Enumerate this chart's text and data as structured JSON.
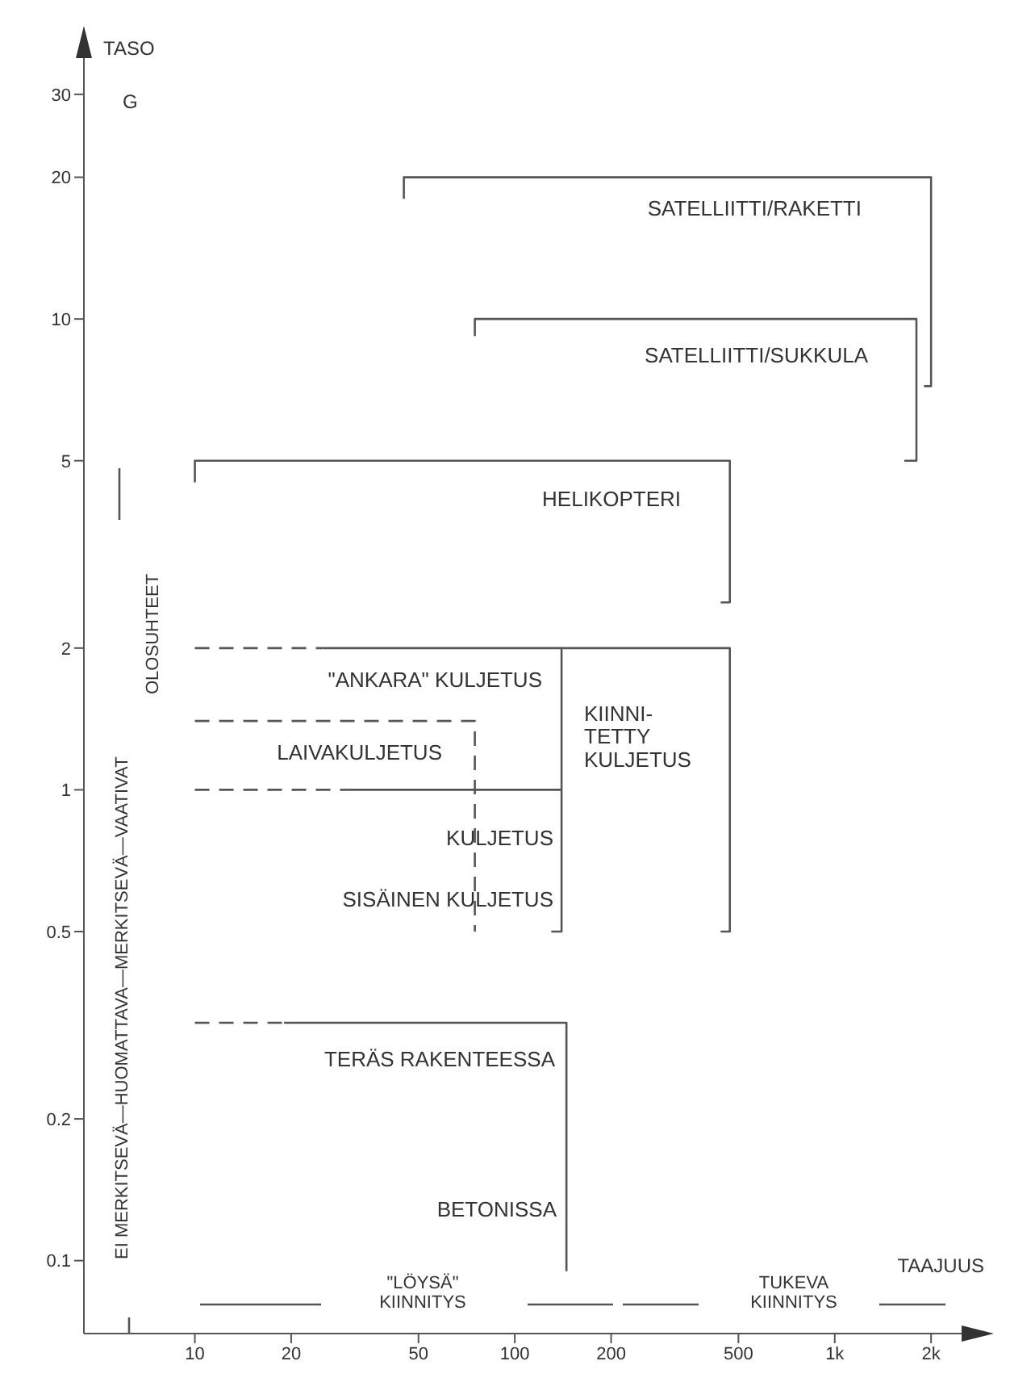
{
  "chart_data": {
    "type": "line",
    "ylabel": "TASO",
    "xlabel": "TAAJUUS",
    "log": "xy",
    "grid": false,
    "marker": "none",
    "xlim": [
      4.5,
      3000
    ],
    "xticks": [
      10,
      20,
      50,
      100,
      200,
      500,
      {
        "value": 1000,
        "label": "1k"
      },
      {
        "value": 2000,
        "label": "2k"
      }
    ],
    "ylim": [
      0.07,
      40
    ],
    "yticks": [
      0.1,
      0.2,
      0.5,
      1,
      2,
      5,
      10,
      20,
      30
    ],
    "series": [
      {
        "color": "#555555",
        "line_style": "solid",
        "x": [
          45,
          45,
          2000,
          2000,
          1900
        ],
        "values": [
          18,
          20,
          20,
          7.2,
          7.2
        ]
      },
      {
        "color": "#555555",
        "line_style": "solid",
        "x": [
          75,
          75,
          1800,
          1800,
          1650
        ],
        "values": [
          9.2,
          10,
          10,
          5,
          5
        ]
      },
      {
        "color": "#555555",
        "line_style": "solid",
        "x": [
          10,
          10,
          470,
          470,
          440
        ],
        "values": [
          4.5,
          5,
          5,
          2.5,
          2.5
        ]
      },
      {
        "color": "#555555",
        "line_style": "dashed",
        "x": [
          10,
          25
        ],
        "values": [
          2,
          2
        ]
      },
      {
        "color": "#555555",
        "line_style": "solid",
        "x": [
          25,
          140,
          140,
          130
        ],
        "values": [
          2,
          2,
          0.5,
          0.5
        ]
      },
      {
        "color": "#555555",
        "line_style": "solid",
        "x": [
          140,
          470,
          470,
          440
        ],
        "values": [
          2,
          2,
          0.5,
          0.5
        ]
      },
      {
        "color": "#555555",
        "line_style": "dashed",
        "x": [
          10,
          30
        ],
        "values": [
          1,
          1
        ]
      },
      {
        "color": "#555555",
        "line_style": "solid",
        "x": [
          30,
          140
        ],
        "values": [
          1,
          1
        ]
      },
      {
        "color": "#555555",
        "line_style": "dashed",
        "x": [
          10,
          75,
          75
        ],
        "values": [
          1.4,
          1.4,
          0.5
        ]
      },
      {
        "color": "#555555",
        "line_style": "dashed",
        "x": [
          10,
          19
        ],
        "values": [
          0.32,
          0.32
        ]
      },
      {
        "color": "#555555",
        "line_style": "solid",
        "x": [
          19,
          145,
          145
        ],
        "values": [
          0.32,
          0.32,
          0.095
        ]
      }
    ],
    "annotations": [
      "SATELLIITTI/RAKETTI",
      "SATELLIITTI/SUKKULA",
      "HELIKOPTERI",
      "\"ANKARA\" KULJETUS",
      "LAIVAKULJETUS",
      "KIINNI-\nTETTY\nKULJETUS",
      "KULJETUS",
      "SISÄINEN KULJETUS",
      "TERÄS RAKENTEESSA",
      "BETONISSA",
      "G",
      "EI MERKITSEVÄ—HUOMATTAVA—MERKITSEVÄ—VAATIVAT\nOLOSUHTEET",
      "\"LÖYSÄ\"\nKIINNITYS",
      "TUKEVA\nKIINNITYS"
    ]
  }
}
